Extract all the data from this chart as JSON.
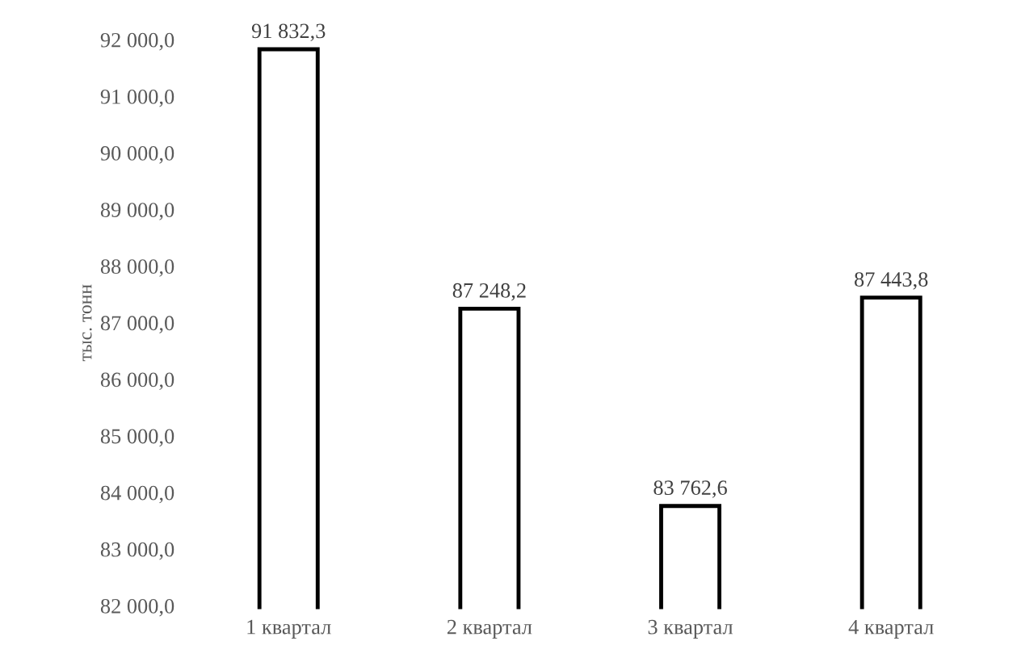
{
  "chart_data": {
    "type": "bar",
    "ylabel": "тыс. тонн",
    "categories": [
      "1 квартал",
      "2 квартал",
      "3 квартал",
      "4 квартал"
    ],
    "values": [
      91832.3,
      87248.2,
      83762.6,
      87443.8
    ],
    "value_labels": [
      "91 832,3",
      "87 248,2",
      "83 762,6",
      "87 443,8"
    ],
    "color": "#ffffff",
    "ylim": [
      82000,
      92000
    ],
    "yticks": [
      {
        "value": 82000,
        "label": "82 000,0"
      },
      {
        "value": 83000,
        "label": "83 000,0"
      },
      {
        "value": 84000,
        "label": "84 000,0"
      },
      {
        "value": 85000,
        "label": "85 000,0"
      },
      {
        "value": 86000,
        "label": "86 000,0"
      },
      {
        "value": 87000,
        "label": "87 000,0"
      },
      {
        "value": 88000,
        "label": "88 000,0"
      },
      {
        "value": 89000,
        "label": "89 000,0"
      },
      {
        "value": 90000,
        "label": "90 000,0"
      },
      {
        "value": 91000,
        "label": "91 000,0"
      },
      {
        "value": 92000,
        "label": "92 000,0"
      }
    ],
    "grid": false,
    "legend": false
  }
}
